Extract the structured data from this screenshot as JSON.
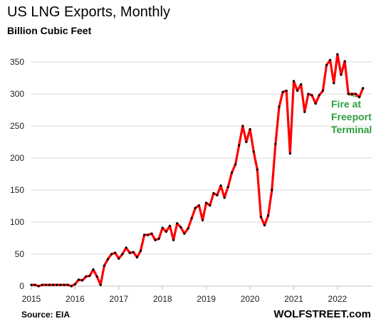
{
  "colors": {
    "line": "#ff0000",
    "marker": "#000000",
    "grid": "#d9d9d9",
    "axis": "#bfbfbf",
    "annotation": "#2e9e3e"
  },
  "chart_data": {
    "type": "line",
    "title": "US LNG Exports,  Monthly",
    "subtitle": "Billion Cubic Feet",
    "xlabel": "",
    "ylabel": "",
    "xlim": [
      2015,
      2022.8
    ],
    "ylim": [
      0,
      380
    ],
    "grid": "horizontal",
    "x_ticks": [
      2015,
      2016,
      2017,
      2018,
      2019,
      2020,
      2021,
      2022
    ],
    "y_ticks": [
      0,
      50,
      100,
      150,
      200,
      250,
      300,
      350
    ],
    "x_start": "2015-01",
    "series": [
      {
        "values": [
          2,
          2,
          0,
          2,
          2,
          2,
          2,
          2,
          2,
          2,
          2,
          0,
          3,
          10,
          9,
          15,
          16,
          26,
          15,
          2,
          32,
          42,
          50,
          52,
          43,
          50,
          60,
          52,
          53,
          45,
          55,
          80,
          80,
          82,
          72,
          74,
          91,
          85,
          94,
          72,
          98,
          92,
          82,
          90,
          106,
          122,
          126,
          103,
          130,
          126,
          145,
          142,
          157,
          138,
          155,
          177,
          190,
          220,
          250,
          225,
          245,
          210,
          182,
          108,
          95,
          110,
          150,
          222,
          280,
          303,
          305,
          207,
          320,
          305,
          315,
          272,
          300,
          298,
          285,
          298,
          305,
          345,
          353,
          317,
          362,
          330,
          351,
          300,
          300,
          300,
          295,
          309
        ]
      }
    ],
    "annotations": [
      {
        "lines": [
          "Fire at",
          "Freeport",
          "Terminal"
        ]
      }
    ],
    "source": "Source: EIA",
    "brand": "WOLFSTREET.com"
  }
}
